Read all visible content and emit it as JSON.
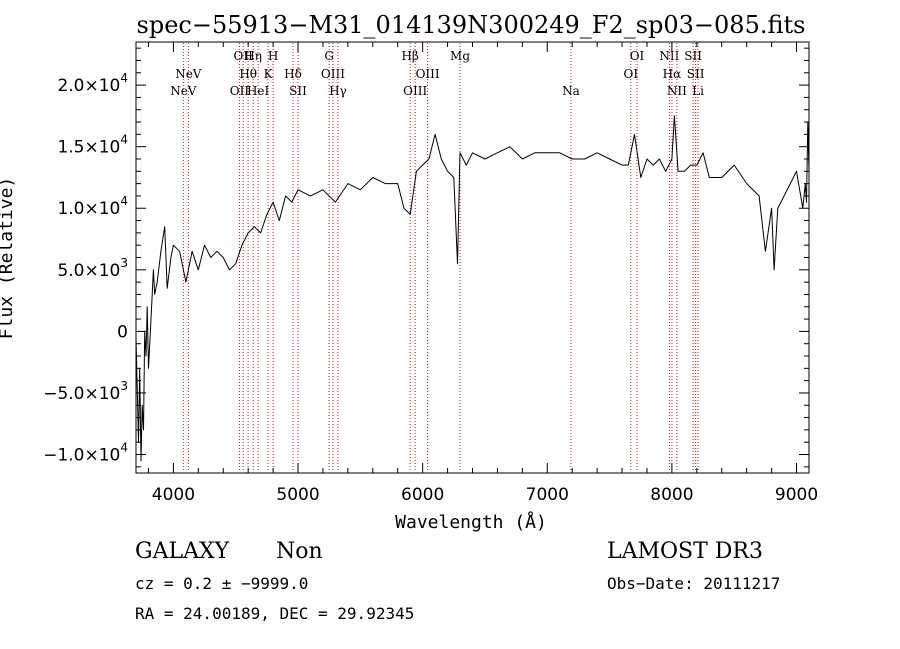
{
  "chart_data": {
    "type": "line",
    "title": "spec−55913−M31_014139N300249_F2_sp03−085.fits",
    "xlabel": "Wavelength (Å)",
    "ylabel": "Flux (Relative)",
    "xlim": [
      3700,
      9100
    ],
    "ylim": [
      -11500,
      23500
    ],
    "x_ticks": [
      {
        "value": 4000,
        "label": "4000"
      },
      {
        "value": 5000,
        "label": "5000"
      },
      {
        "value": 6000,
        "label": "6000"
      },
      {
        "value": 7000,
        "label": "7000"
      },
      {
        "value": 8000,
        "label": "8000"
      },
      {
        "value": 9000,
        "label": "9000"
      }
    ],
    "y_ticks": [
      {
        "value": -10000,
        "label": "−1.0×10",
        "exp": "4"
      },
      {
        "value": -5000,
        "label": "−5.0×10",
        "exp": "3"
      },
      {
        "value": 0,
        "label": "0",
        "exp": ""
      },
      {
        "value": 5000,
        "label": "5.0×10",
        "exp": "3"
      },
      {
        "value": 10000,
        "label": "1.0×10",
        "exp": "4"
      },
      {
        "value": 15000,
        "label": "1.5×10",
        "exp": "4"
      },
      {
        "value": 20000,
        "label": "2.0×10",
        "exp": "4"
      }
    ],
    "series": [
      {
        "x": [
          3700,
          3720,
          3730,
          3740,
          3750,
          3760,
          3770,
          3780,
          3790,
          3800,
          3820,
          3840,
          3850,
          3870,
          3900,
          3930,
          3950,
          3980,
          4000,
          4050,
          4100,
          4150,
          4200,
          4250,
          4300,
          4350,
          4400,
          4450,
          4500,
          4550,
          4600,
          4650,
          4700,
          4750,
          4800,
          4850,
          4900,
          4950,
          5000,
          5100,
          5200,
          5300,
          5400,
          5500,
          5600,
          5700,
          5800,
          5850,
          5900,
          5950,
          6000,
          6050,
          6100,
          6150,
          6200,
          6250,
          6280,
          6300,
          6350,
          6400,
          6500,
          6600,
          6700,
          6800,
          6900,
          7000,
          7100,
          7200,
          7300,
          7400,
          7500,
          7600,
          7650,
          7700,
          7750,
          7800,
          7850,
          7900,
          7950,
          8000,
          8020,
          8050,
          8100,
          8150,
          8200,
          8250,
          8300,
          8400,
          8500,
          8600,
          8700,
          8750,
          8800,
          8820,
          8850,
          8900,
          8950,
          9000,
          9050,
          9070,
          9080,
          9090,
          9100
        ],
        "y": [
          -500,
          -9000,
          -3000,
          -10500,
          -6000,
          -8000,
          0,
          -2000,
          2000,
          -3000,
          1000,
          5000,
          3000,
          4000,
          6500,
          8500,
          3500,
          6000,
          7000,
          6500,
          4000,
          6500,
          5000,
          7000,
          6000,
          6500,
          6000,
          5000,
          5500,
          7000,
          8000,
          8500,
          8000,
          9500,
          10500,
          9000,
          11000,
          10500,
          11500,
          11000,
          11500,
          10500,
          12000,
          11500,
          12500,
          12000,
          12000,
          10000,
          9500,
          13000,
          13500,
          14000,
          16000,
          14000,
          13000,
          12500,
          5500,
          14500,
          13500,
          14500,
          14000,
          14500,
          15000,
          14000,
          14500,
          14500,
          14500,
          14000,
          14000,
          14500,
          14000,
          13500,
          13500,
          16000,
          12500,
          14000,
          13500,
          14000,
          13000,
          14000,
          17500,
          13000,
          13000,
          13500,
          13500,
          14500,
          12500,
          12500,
          13500,
          12000,
          11000,
          6500,
          10000,
          5000,
          10000,
          11000,
          12000,
          13000,
          10000,
          12000,
          10500,
          17000,
          13000
        ]
      }
    ],
    "emission_lines": [
      {
        "x": 4080,
        "label": "NeV",
        "row": 3
      },
      {
        "x": 4120,
        "label": "NeV",
        "row": 2
      },
      {
        "x": 4530,
        "label": "OII",
        "row": 3
      },
      {
        "x": 4560,
        "label": "OII",
        "row": 1
      },
      {
        "x": 4600,
        "label": "Hθ",
        "row": 2
      },
      {
        "x": 4640,
        "label": "Hη",
        "row": 1
      },
      {
        "x": 4680,
        "label": "HeI",
        "row": 3
      },
      {
        "x": 4760,
        "label": "K",
        "row": 2
      },
      {
        "x": 4800,
        "label": "H",
        "row": 1
      },
      {
        "x": 4960,
        "label": "Hδ",
        "row": 2
      },
      {
        "x": 5000,
        "label": "SII",
        "row": 3
      },
      {
        "x": 5250,
        "label": "G",
        "row": 1
      },
      {
        "x": 5280,
        "label": "OIII",
        "row": 2
      },
      {
        "x": 5320,
        "label": "Hγ",
        "row": 3
      },
      {
        "x": 5900,
        "label": "Hβ",
        "row": 1
      },
      {
        "x": 5940,
        "label": "OIII",
        "row": 3
      },
      {
        "x": 6040,
        "label": "OIII",
        "row": 2
      },
      {
        "x": 6300,
        "label": "Mg",
        "row": 1
      },
      {
        "x": 7190,
        "label": "Na",
        "row": 3
      },
      {
        "x": 7670,
        "label": "OI",
        "row": 2
      },
      {
        "x": 7720,
        "label": "OI",
        "row": 1
      },
      {
        "x": 7980,
        "label": "NII",
        "row": 1
      },
      {
        "x": 8000,
        "label": "Hα",
        "row": 2
      },
      {
        "x": 8040,
        "label": "NII",
        "row": 3
      },
      {
        "x": 8170,
        "label": "SII",
        "row": 1
      },
      {
        "x": 8190,
        "label": "SII",
        "row": 2
      },
      {
        "x": 8210,
        "label": "Li",
        "row": 3
      }
    ],
    "grid": false,
    "line_color": "#000000",
    "marker_line_color": "#b22222"
  },
  "info": {
    "object_class": "GALAXY",
    "subclass": "Non",
    "survey": "LAMOST DR3",
    "redshift": "cz = 0.2 ± −9999.0",
    "obs_date": "Obs−Date: 20111217",
    "coords": "RA =  24.00189, DEC =  29.92345"
  }
}
